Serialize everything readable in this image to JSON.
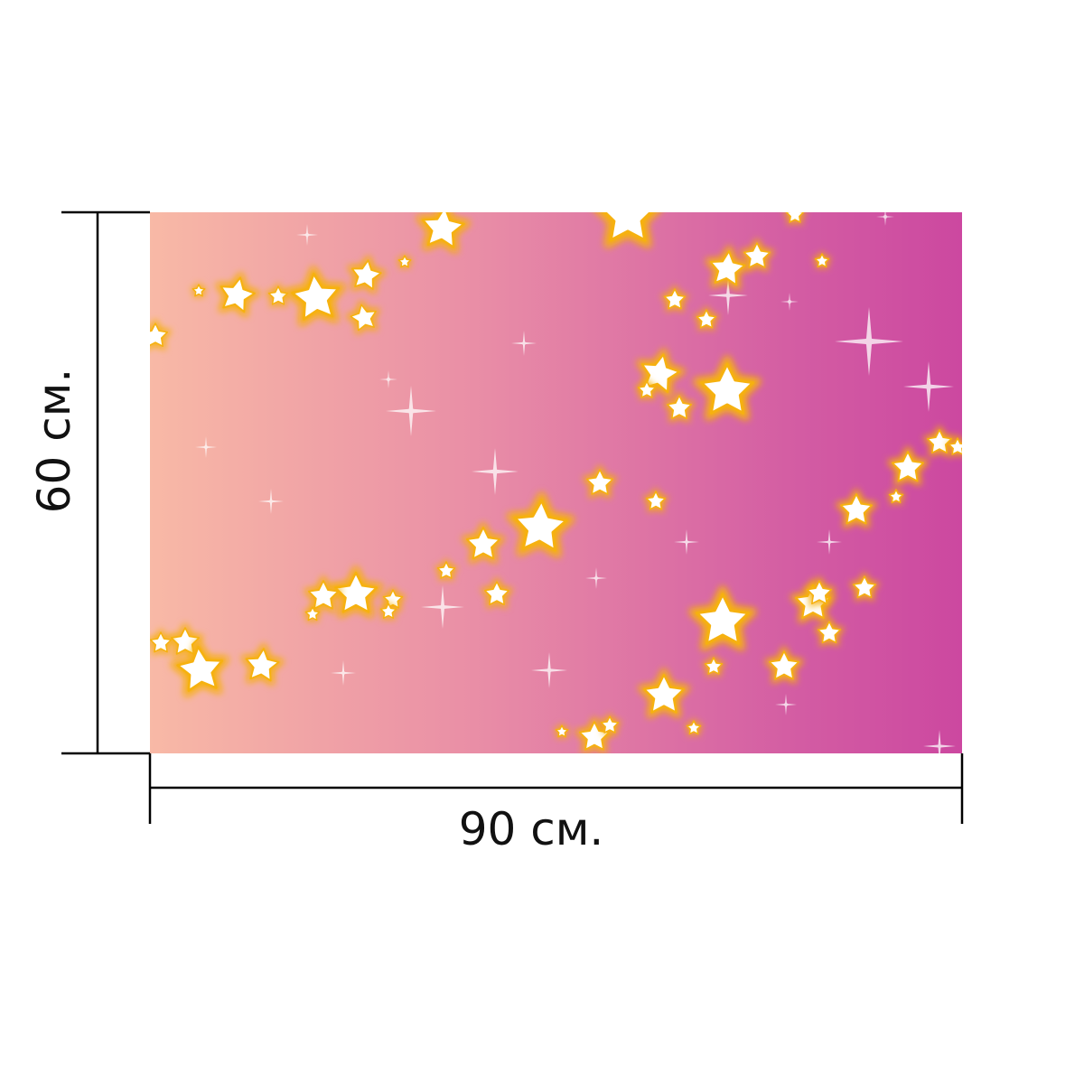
{
  "dimensions": {
    "width_label": "90 см.",
    "height_label": "60 см."
  },
  "artwork": {
    "gradient_colors": [
      "#f8b9a6",
      "#e98ea6",
      "#d35ca3",
      "#cc48a0"
    ],
    "star_fill": "#ffffff",
    "star_glow": "#f6b10f",
    "sparkle_color": "#ffffff",
    "icons": [
      "star-icon",
      "sparkle-icon"
    ]
  },
  "line_color": "#000000"
}
